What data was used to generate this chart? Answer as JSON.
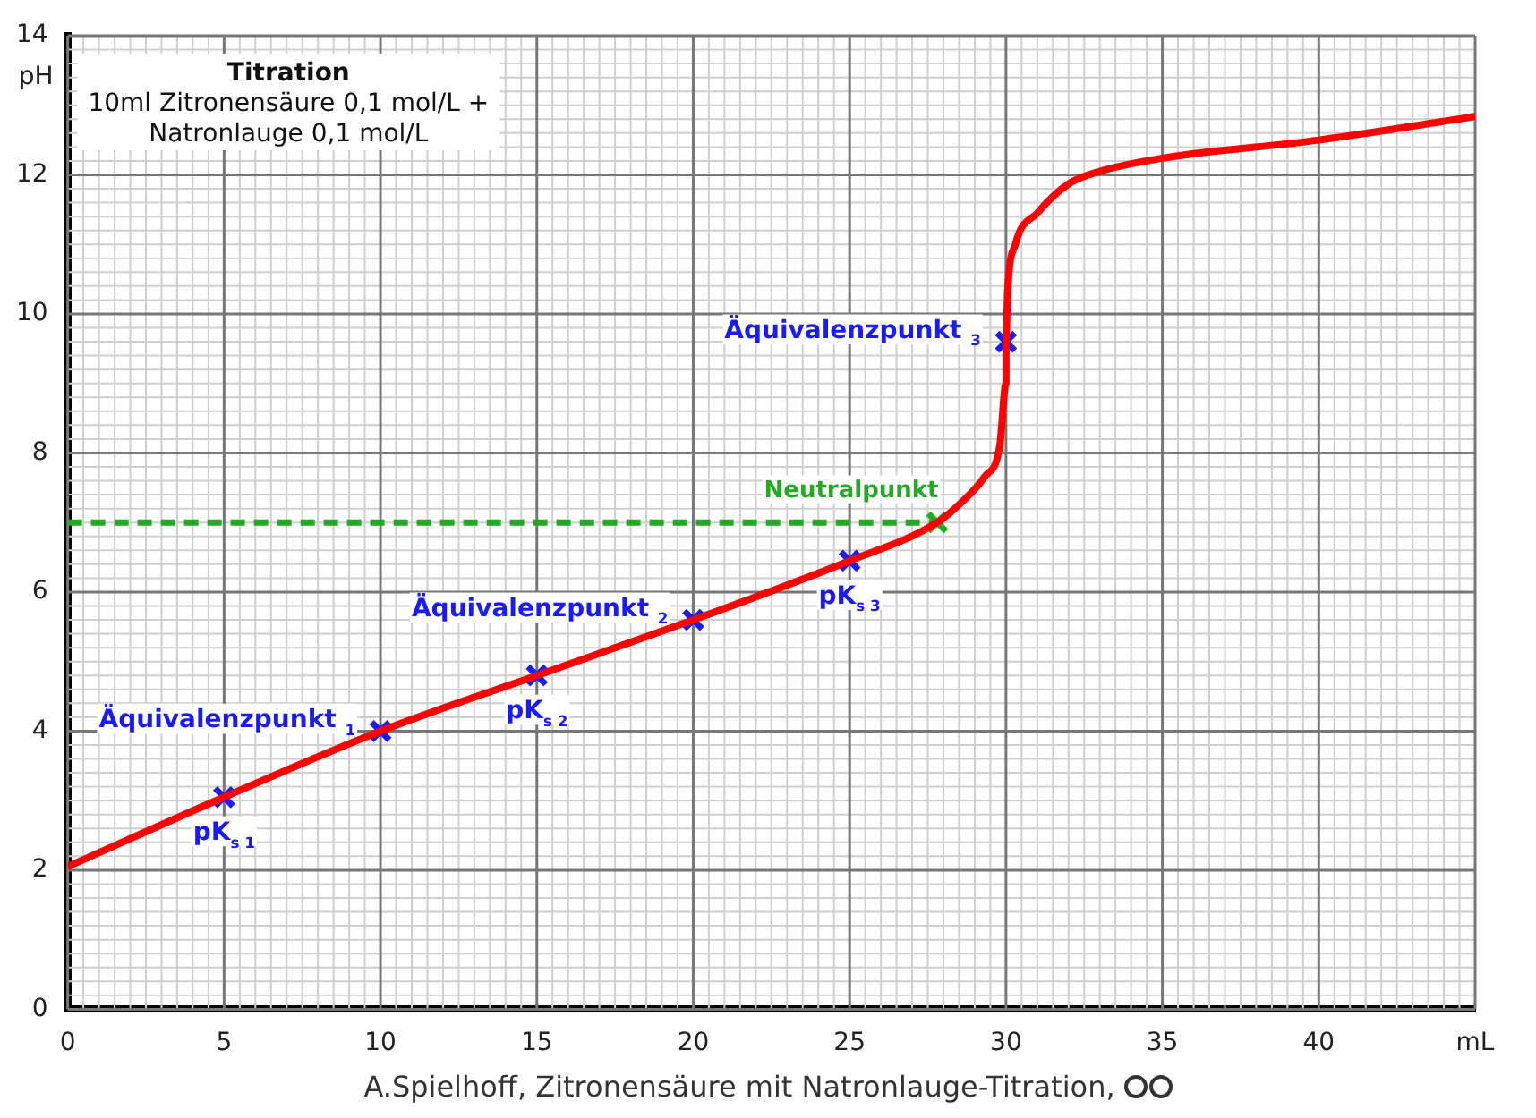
{
  "chart_data": {
    "type": "line",
    "title": "Titration",
    "subtitle": "10ml Zitronensäure 0,1 mol/L +\nNatronlauge 0,1 mol/L",
    "ylabel": "pH",
    "xlim": [
      0,
      45
    ],
    "xticks": [
      0,
      5,
      10,
      15,
      20,
      25,
      30,
      35,
      40,
      {
        "value": 45,
        "label": "mL"
      }
    ],
    "ylim": [
      0,
      14
    ],
    "yticks": [
      0,
      2,
      4,
      6,
      8,
      10,
      12,
      14
    ],
    "grid": true,
    "legend": false,
    "series": [
      {
        "type": "line",
        "color": "#ff0000",
        "marker": "none",
        "x": [
          0,
          5,
          10,
          15,
          20,
          25,
          27.8,
          28.6,
          29.3,
          29.8,
          30,
          30,
          30.05,
          30.3,
          31,
          32,
          33,
          35,
          40,
          45
        ],
        "values": [
          2.05,
          3.05,
          4.0,
          4.8,
          5.6,
          6.45,
          7.0,
          7.3,
          7.65,
          8.1,
          9.0,
          9.6,
          10.3,
          11.0,
          11.45,
          11.87,
          12.05,
          12.24,
          12.5,
          12.84
        ]
      },
      {
        "type": "line",
        "color": "#22aa22",
        "marker": "none",
        "line_style": "dashed",
        "x": [
          0,
          27.8
        ],
        "values": [
          7,
          7
        ]
      },
      {
        "type": "scatter",
        "color": "#1a1aff",
        "marker": "cross",
        "x": [
          5,
          10,
          15,
          20,
          25,
          30
        ],
        "values": [
          3.05,
          4.0,
          4.8,
          5.6,
          6.45,
          9.6
        ]
      },
      {
        "type": "scatter",
        "color": "#22aa22",
        "marker": "cross",
        "x": [
          27.8
        ],
        "values": [
          7.0
        ]
      }
    ],
    "annotations": [
      {
        "text": "pK$_{s 1}$",
        "x": 5,
        "y": 3.05
      },
      {
        "text": "Äquivalenzpunkt $_{1}$",
        "x": 10,
        "y": 4.0
      },
      {
        "text": "pK$_{s 2}$",
        "x": 15,
        "y": 4.8
      },
      {
        "text": "Äquivalenzpunkt $_{2}$",
        "x": 20,
        "y": 5.6
      },
      {
        "text": "pK$_{s 3}$",
        "x": 25,
        "y": 6.45
      },
      {
        "text": "Neutralpunkt",
        "x": 27.8,
        "y": 7.0
      },
      {
        "text": "Äquivalenzpunkt $_{3}$",
        "x": 30,
        "y": 9.6
      },
      "A.Spielhoff, Zitronensäure mit Natronlauge-Titration,"
    ]
  }
}
